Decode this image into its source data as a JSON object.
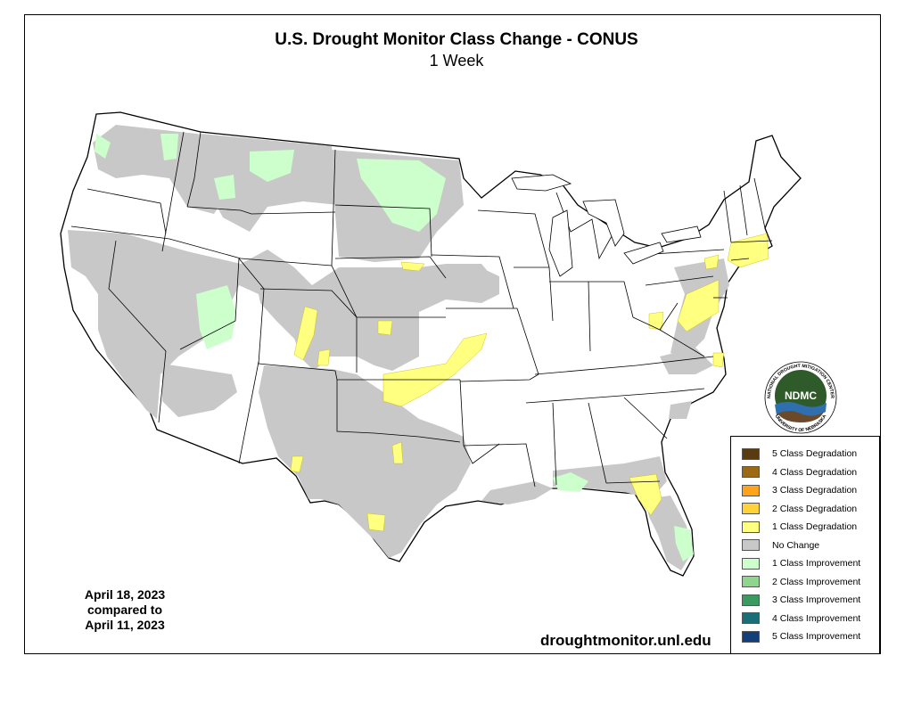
{
  "title": "U.S. Drought Monitor Class Change - CONUS",
  "subtitle": "1 Week",
  "dates": {
    "line1": "April 18, 2023",
    "line2": "compared to",
    "line3": "April 11, 2023"
  },
  "url": "droughtmonitor.unl.edu",
  "logo": {
    "acronym": "NDMC",
    "ring_top": "NATIONAL DROUGHT MITIGATION CENTER",
    "ring_bottom": "UNIVERSITY OF NEBRASKA",
    "colors": {
      "disc": "#2f5a2a",
      "water": "#2f6fb0",
      "land": "#6b4a2b"
    }
  },
  "legend": [
    {
      "label": "5 Class Degradation",
      "color": "#5a3a10"
    },
    {
      "label": "4 Class Degradation",
      "color": "#9c6a12"
    },
    {
      "label": "3 Class Degradation",
      "color": "#ffa31a"
    },
    {
      "label": "2 Class Degradation",
      "color": "#ffd23a"
    },
    {
      "label": "1 Class Degradation",
      "color": "#ffff80"
    },
    {
      "label": "No Change",
      "color": "#c8c8c8"
    },
    {
      "label": "1 Class Improvement",
      "color": "#ccffcc"
    },
    {
      "label": "2 Class Improvement",
      "color": "#8ed68e"
    },
    {
      "label": "3 Class Improvement",
      "color": "#3a9a60"
    },
    {
      "label": "4 Class Improvement",
      "color": "#1a6e78"
    },
    {
      "label": "5 Class Improvement",
      "color": "#153f7a"
    }
  ],
  "map_colors": {
    "no_change": "#c8c8c8",
    "degradation_1": "#ffff80",
    "improvement_1": "#ccffcc",
    "improvement_2": "#8ed68e",
    "land": "#ffffff",
    "border": "#000000"
  }
}
